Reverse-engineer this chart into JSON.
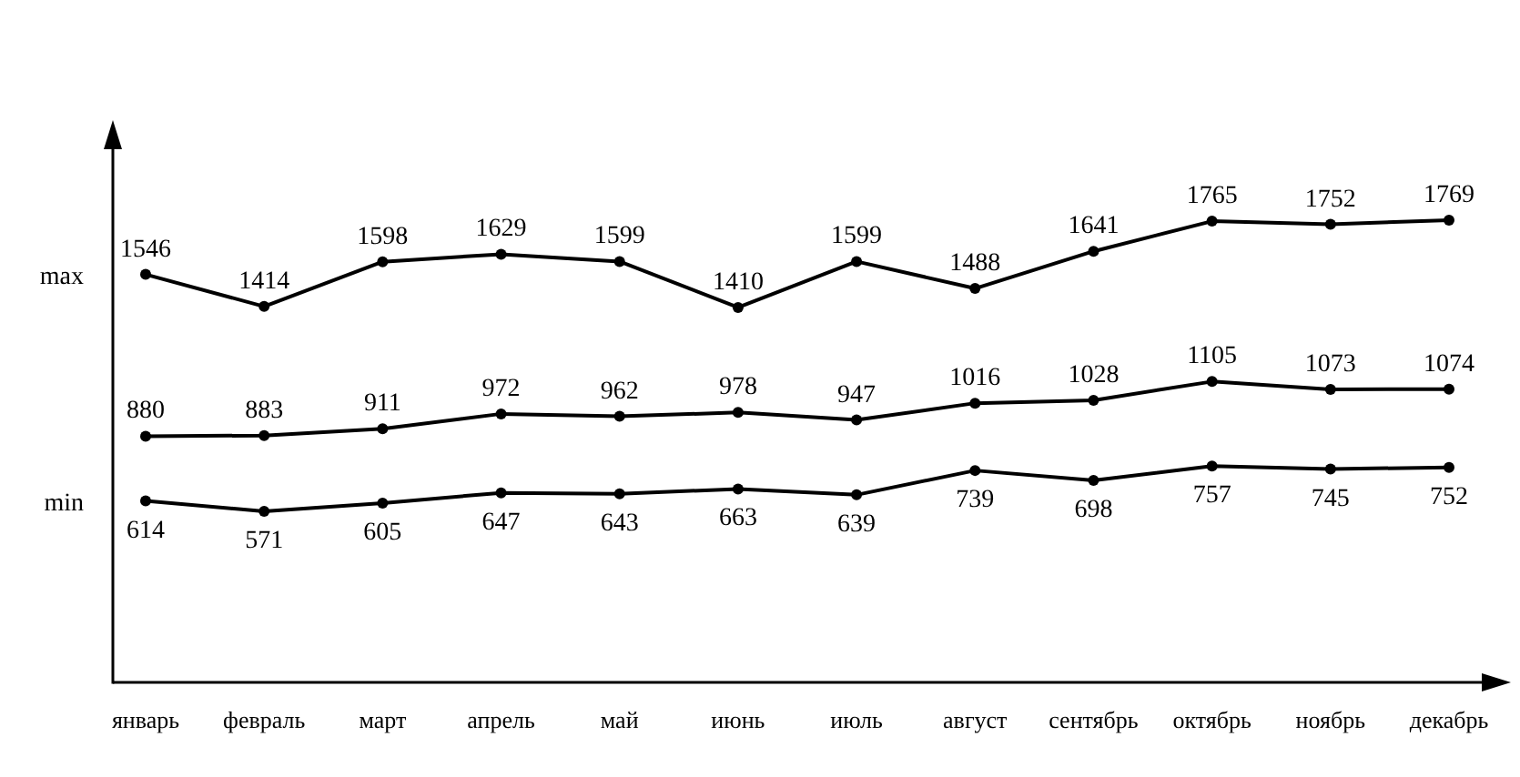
{
  "chart_data": {
    "type": "line",
    "categories": [
      "январь",
      "февраль",
      "март",
      "апрель",
      "май",
      "июнь",
      "июль",
      "август",
      "сентябрь",
      "октябрь",
      "ноябрь",
      "декабрь"
    ],
    "series": [
      {
        "name": "max",
        "color": "#000000",
        "values": [
          1546,
          1414,
          1598,
          1629,
          1599,
          1410,
          1599,
          1488,
          1641,
          1765,
          1752,
          1769
        ]
      },
      {
        "color": "#000000",
        "values": [
          880,
          883,
          911,
          972,
          962,
          978,
          947,
          1016,
          1028,
          1105,
          1073,
          1074
        ]
      },
      {
        "name": "min",
        "color": "#000000",
        "values": [
          614,
          571,
          605,
          647,
          643,
          663,
          639,
          739,
          698,
          757,
          745,
          752
        ]
      }
    ],
    "data_labels": true,
    "marker": "circle",
    "line_style": "solid",
    "grid": false
  }
}
